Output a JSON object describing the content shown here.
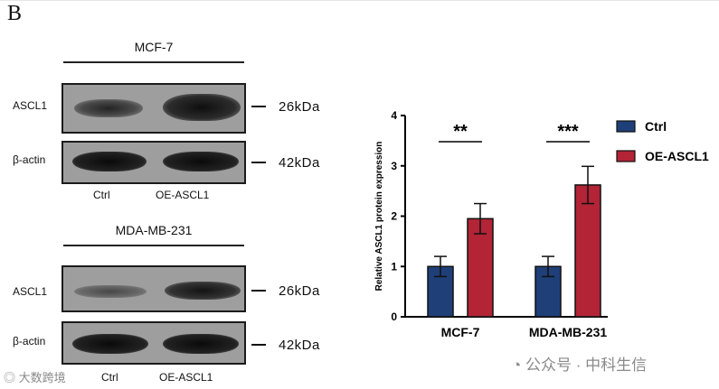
{
  "panel_label": "B",
  "blots": [
    {
      "cell_line": "MCF-7",
      "rows": [
        {
          "protein": "ASCL1",
          "size": "26kDa"
        },
        {
          "protein": "β-actin",
          "size": "42kDa"
        }
      ],
      "lanes": [
        "Ctrl",
        "OE-ASCL1"
      ]
    },
    {
      "cell_line": "MDA-MB-231",
      "rows": [
        {
          "protein": "ASCL1",
          "size": "26kDa"
        },
        {
          "protein": "β-actin",
          "size": "42kDa"
        }
      ],
      "lanes": [
        "Ctrl",
        "OE-ASCL1"
      ]
    }
  ],
  "watermark": {
    "left_text": "大数跨境",
    "right_text": "公众号 · 中科生信"
  },
  "chart_data": {
    "type": "bar",
    "categories": [
      "MCF-7",
      "MDA-MB-231"
    ],
    "series": [
      {
        "name": "Ctrl",
        "color": "#1f3f78",
        "values": [
          1.0,
          1.0
        ],
        "errors": [
          0.2,
          0.2
        ]
      },
      {
        "name": "OE-ASCL1",
        "color": "#b22436",
        "values": [
          1.95,
          2.62
        ],
        "errors": [
          0.3,
          0.37
        ]
      }
    ],
    "significance": [
      "**",
      "***"
    ],
    "title": "",
    "xlabel": "",
    "ylabel": "Relative ASCL1 protein expression",
    "ylim": [
      0,
      4
    ],
    "yticks": [
      "0",
      "1",
      "2",
      "3",
      "4"
    ],
    "grid": false,
    "legend": "top-right"
  }
}
